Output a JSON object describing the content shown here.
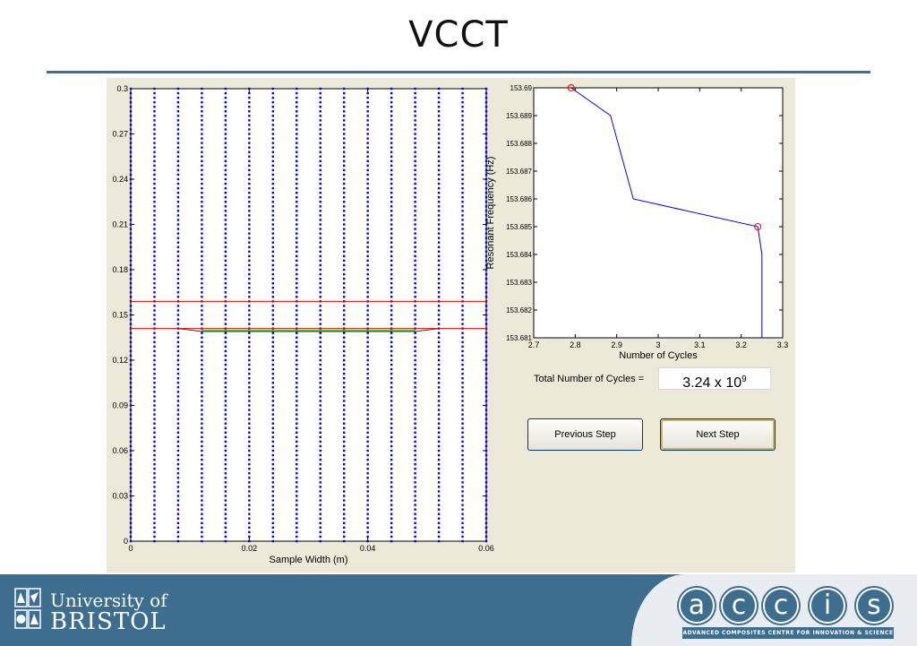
{
  "header": {
    "title": "VCCT"
  },
  "chart_data": [
    {
      "type": "scatter",
      "title": "",
      "xlabel": "Sample Width (m)",
      "ylabel": "",
      "xlim": [
        0,
        0.06
      ],
      "ylim": [
        0,
        0.3
      ],
      "xticks": [
        "0",
        "0.02",
        "0.04",
        "0.06"
      ],
      "yticks": [
        "0",
        "0.03",
        "0.06",
        "0.09",
        "0.12",
        "0.15",
        "0.18",
        "0.21",
        "0.24",
        "0.27",
        "0.3"
      ],
      "node_columns_x": [
        0,
        0.004,
        0.008,
        0.012,
        0.016,
        0.02,
        0.024,
        0.028,
        0.032,
        0.036,
        0.04,
        0.044,
        0.048,
        0.052,
        0.056,
        0.06
      ],
      "node_spacing_y": 0.003,
      "node_color": "#0000ff",
      "horizontal_lines": [
        {
          "y": 0.159,
          "color": "#ff0000"
        },
        {
          "y": 0.141,
          "color": "#ff0000"
        }
      ],
      "crack_front": {
        "color": "#00cc00",
        "outline_color": "#333333",
        "x": [
          0.008,
          0.012,
          0.048,
          0.052
        ],
        "y": [
          0.141,
          0.139,
          0.139,
          0.141
        ]
      }
    },
    {
      "type": "line",
      "title": "",
      "xlabel": "Number of Cycles",
      "ylabel": "Resonant Frequency (Hz)",
      "xlim": [
        2.7,
        3.3
      ],
      "ylim": [
        153.681,
        153.69
      ],
      "xticks": [
        "2.7",
        "2.8",
        "2.9",
        "3",
        "3.1",
        "3.2",
        "3.3"
      ],
      "yticks": [
        "153.681",
        "153.682",
        "153.683",
        "153.684",
        "153.685",
        "153.686",
        "153.687",
        "153.688",
        "153.689",
        "153.69"
      ],
      "series": [
        {
          "color": "#0000ff",
          "x": [
            2.79,
            2.885,
            2.94,
            3.24,
            3.25,
            3.25
          ],
          "y": [
            153.69,
            153.689,
            153.686,
            153.685,
            153.684,
            153.681
          ]
        }
      ],
      "markers": [
        {
          "x": 2.79,
          "y": 153.69,
          "color": "#ff0000"
        },
        {
          "x": 3.24,
          "y": 153.685,
          "color": "#ff0000"
        }
      ]
    }
  ],
  "controls": {
    "cycles_label": "Total Number of Cycles =",
    "cycles_mantissa": "3.24 x 10",
    "cycles_exponent": "9",
    "previous_button": "Previous Step",
    "next_button": "Next Step"
  },
  "footer": {
    "university_line1": "University of",
    "university_line2": "BRISTOL",
    "accis_letters": [
      "a",
      "c",
      "c",
      "i",
      "s"
    ],
    "accis_tagline": "ADVANCED COMPOSITES CENTRE FOR INNOVATION & SCIENCE"
  },
  "colors": {
    "accent": "#3d6e8f",
    "panel": "#ece9d8"
  }
}
